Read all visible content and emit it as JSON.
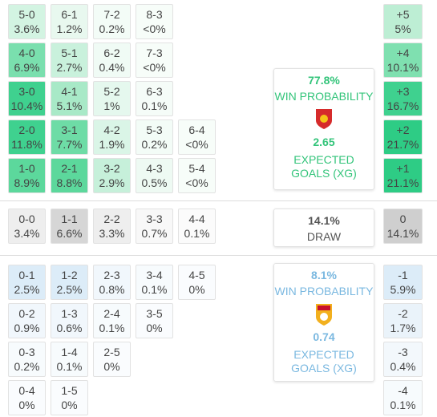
{
  "home": {
    "rows": [
      {
        "cells": [
          {
            "score": "5-0",
            "prob": "3.6%",
            "color": "#d3f4e2"
          },
          {
            "score": "6-1",
            "prob": "1.2%",
            "color": "#e8f8ef"
          },
          {
            "score": "7-2",
            "prob": "0.2%",
            "color": "#f3fcf7"
          },
          {
            "score": "8-3",
            "prob": "<0%",
            "color": "#f7fdf9"
          }
        ],
        "margin": {
          "score": "+5",
          "prob": "5%",
          "color": "#bdeed4"
        }
      },
      {
        "cells": [
          {
            "score": "4-0",
            "prob": "6.9%",
            "color": "#7adfae"
          },
          {
            "score": "5-1",
            "prob": "2.7%",
            "color": "#c9f1dc"
          },
          {
            "score": "6-2",
            "prob": "0.4%",
            "color": "#f0fbf5"
          },
          {
            "score": "7-3",
            "prob": "<0%",
            "color": "#f7fdf9"
          }
        ],
        "margin": {
          "score": "+4",
          "prob": "10.1%",
          "color": "#7fe0b0"
        }
      },
      {
        "cells": [
          {
            "score": "3-0",
            "prob": "10.4%",
            "color": "#3fd18f"
          },
          {
            "score": "4-1",
            "prob": "5.1%",
            "color": "#a8e9c7"
          },
          {
            "score": "5-2",
            "prob": "1%",
            "color": "#e5f8ee"
          },
          {
            "score": "6-3",
            "prob": "0.1%",
            "color": "#f5fcf8"
          }
        ],
        "margin": {
          "score": "+3",
          "prob": "16.7%",
          "color": "#3fd18f"
        }
      },
      {
        "cells": [
          {
            "score": "2-0",
            "prob": "11.8%",
            "color": "#3fd18f"
          },
          {
            "score": "3-1",
            "prob": "7.7%",
            "color": "#6edca6"
          },
          {
            "score": "4-2",
            "prob": "1.9%",
            "color": "#daf5e7"
          },
          {
            "score": "5-3",
            "prob": "0.2%",
            "color": "#f3fcf7"
          },
          {
            "score": "6-4",
            "prob": "<0%",
            "color": "#f7fdf9"
          }
        ],
        "margin": {
          "score": "+2",
          "prob": "21.7%",
          "color": "#2ecc85"
        }
      },
      {
        "cells": [
          {
            "score": "1-0",
            "prob": "8.9%",
            "color": "#5cd89c"
          },
          {
            "score": "2-1",
            "prob": "8.8%",
            "color": "#5cd89c"
          },
          {
            "score": "3-2",
            "prob": "2.9%",
            "color": "#c6f0da"
          },
          {
            "score": "4-3",
            "prob": "0.5%",
            "color": "#eefaf3"
          },
          {
            "score": "5-4",
            "prob": "<0%",
            "color": "#f7fdf9"
          }
        ],
        "margin": {
          "score": "+1",
          "prob": "21.1%",
          "color": "#2ecc85"
        }
      }
    ],
    "panel": {
      "win_prob": "77.8%",
      "win_label": "WIN PROBABILITY",
      "xg": "2.65",
      "xg_label": "EXPECTED GOALS (XG)"
    }
  },
  "draw": {
    "rows": [
      {
        "cells": [
          {
            "score": "0-0",
            "prob": "3.4%",
            "color": "#eeeeee"
          },
          {
            "score": "1-1",
            "prob": "6.6%",
            "color": "#d6d6d6"
          },
          {
            "score": "2-2",
            "prob": "3.3%",
            "color": "#eeeeee"
          },
          {
            "score": "3-3",
            "prob": "0.7%",
            "color": "#f8f8f8"
          },
          {
            "score": "4-4",
            "prob": "0.1%",
            "color": "#fbfbfb"
          }
        ],
        "margin": {
          "score": "0",
          "prob": "14.1%",
          "color": "#cfcfcf"
        }
      }
    ],
    "panel": {
      "prob": "14.1%",
      "label": "DRAW"
    }
  },
  "away": {
    "rows": [
      {
        "cells": [
          {
            "score": "0-1",
            "prob": "2.5%",
            "color": "#dcecf8"
          },
          {
            "score": "1-2",
            "prob": "2.5%",
            "color": "#dcecf8"
          },
          {
            "score": "2-3",
            "prob": "0.8%",
            "color": "#f1f7fc"
          },
          {
            "score": "3-4",
            "prob": "0.1%",
            "color": "#f7fbfd"
          },
          {
            "score": "4-5",
            "prob": "0%",
            "color": "#fafcfe"
          }
        ],
        "margin": {
          "score": "-1",
          "prob": "5.9%",
          "color": "#dcecf8"
        }
      },
      {
        "cells": [
          {
            "score": "0-2",
            "prob": "0.9%",
            "color": "#f1f7fc"
          },
          {
            "score": "1-3",
            "prob": "0.6%",
            "color": "#f1f7fc"
          },
          {
            "score": "2-4",
            "prob": "0.1%",
            "color": "#f7fbfd"
          },
          {
            "score": "3-5",
            "prob": "0%",
            "color": "#fafcfe"
          }
        ],
        "margin": {
          "score": "-2",
          "prob": "1.7%",
          "color": "#eaf3fa"
        }
      },
      {
        "cells": [
          {
            "score": "0-3",
            "prob": "0.2%",
            "color": "#f7fbfd"
          },
          {
            "score": "1-4",
            "prob": "0.1%",
            "color": "#f7fbfd"
          },
          {
            "score": "2-5",
            "prob": "0%",
            "color": "#fafcfe"
          }
        ],
        "margin": {
          "score": "-3",
          "prob": "0.4%",
          "color": "#f3f8fc"
        }
      },
      {
        "cells": [
          {
            "score": "0-4",
            "prob": "0%",
            "color": "#fafcfe"
          },
          {
            "score": "1-5",
            "prob": "0%",
            "color": "#fafcfe"
          }
        ],
        "margin": {
          "score": "-4",
          "prob": "0.1%",
          "color": "#f7fbfd"
        }
      }
    ],
    "panel": {
      "win_prob": "8.1%",
      "win_label": "WIN PROBABILITY",
      "xg": "0.74",
      "xg_label": "EXPECTED GOALS (XG)"
    }
  }
}
